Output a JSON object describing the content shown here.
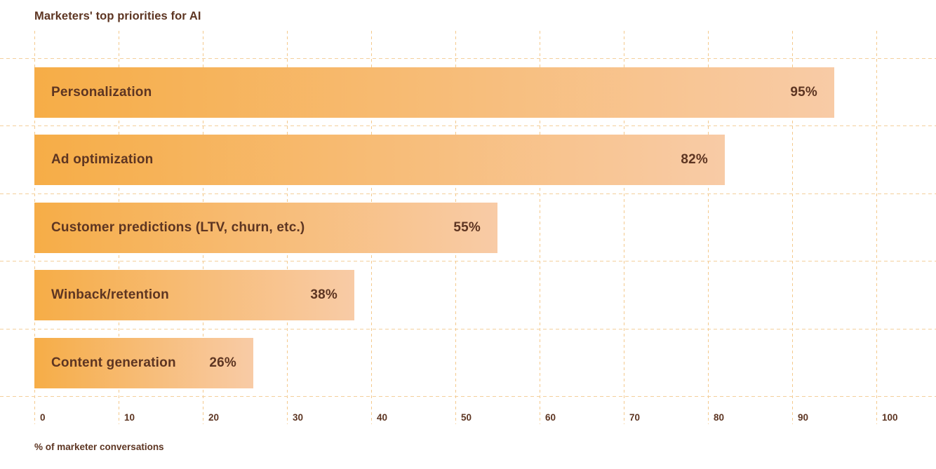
{
  "chart_data": {
    "type": "bar",
    "orientation": "horizontal",
    "title": "Marketers' top priorities for AI",
    "xlabel": "% of marketer conversations",
    "categories": [
      "Personalization",
      "Ad optimization",
      "Customer predictions (LTV, churn, etc.)",
      "Winback/retention",
      "Content generation"
    ],
    "values": [
      95,
      82,
      55,
      38,
      26
    ],
    "value_labels": [
      "95%",
      "82%",
      "55%",
      "38%",
      "26%"
    ],
    "xlim": [
      0,
      100
    ],
    "xticks": [
      "0",
      "10",
      "20",
      "30",
      "40",
      "50",
      "60",
      "70",
      "80",
      "90",
      "100"
    ],
    "grid": "dashed, vertical at each tick and horizontal between category rows",
    "legend": "none",
    "colors": {
      "background": "#ffffff",
      "bar_gradient_start": "#f6ad47",
      "bar_gradient_end": "#f8cba6",
      "gridline_vertical": "#f4c98c",
      "gridline_horizontal": "#f4cf9c",
      "text": "#5d3522"
    }
  }
}
